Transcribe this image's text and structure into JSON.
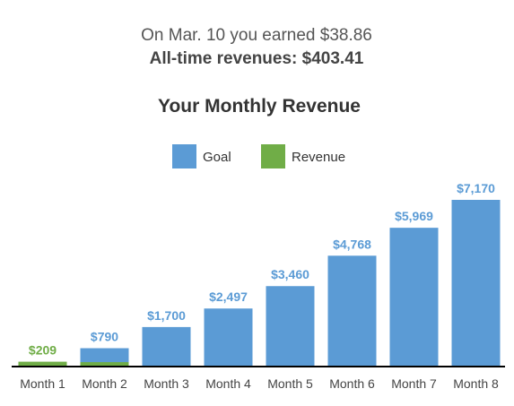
{
  "summary": {
    "earned_text": "On Mar. 10 you earned $38.86",
    "alltime_text": "All-time revenues: $403.41"
  },
  "colors": {
    "goal": "#5b9bd5",
    "revenue": "#70ad47",
    "goal_label": "#5b9bd5",
    "revenue_label": "#70ad47",
    "axis": "#000000"
  },
  "chart_data": {
    "type": "bar",
    "title": "Your Monthly Revenue",
    "legend_position": "top-center",
    "grid": false,
    "categories": [
      "Month 1",
      "Month 2",
      "Month 3",
      "Month 4",
      "Month 5",
      "Month 6",
      "Month 7",
      "Month 8"
    ],
    "series": [
      {
        "name": "Goal",
        "values": [
          null,
          790,
          1700,
          2497,
          3460,
          4768,
          5969,
          7170
        ],
        "labels": [
          "",
          "$790",
          "$1,700",
          "$2,497",
          "$3,460",
          "$4,768",
          "$5,969",
          "$7,170"
        ]
      },
      {
        "name": "Revenue",
        "values": [
          209,
          190,
          null,
          null,
          null,
          null,
          null,
          null
        ],
        "labels": [
          "$209",
          "",
          "",
          "",
          "",
          "",
          "",
          ""
        ]
      }
    ],
    "ylim": [
      0,
      7170
    ]
  }
}
